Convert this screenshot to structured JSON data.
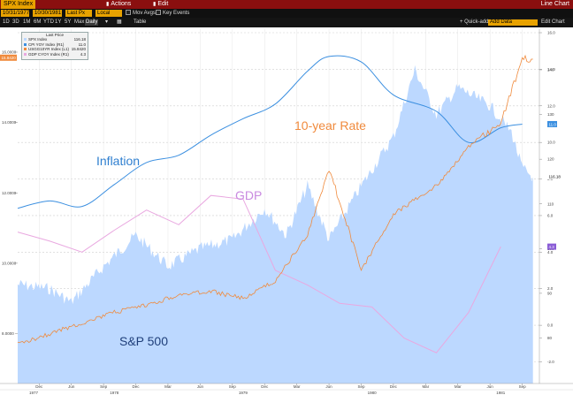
{
  "titlebar": {
    "ticker": "SPX Index",
    "blurred": "",
    "actions": "Actions",
    "edit": "Edit",
    "right": "Line Chart"
  },
  "toolbar1": {
    "date_start": "10/31/1977",
    "date_end": "10/30/1981",
    "freq": "Last Px",
    "currency": "Local CCY",
    "mov_avgs": "Mov Avgs",
    "key_events": "Key Events"
  },
  "toolbar2": {
    "periods": [
      "1D",
      "3D",
      "1M",
      "6M",
      "YTD",
      "1Y",
      "5Y",
      "Max",
      "Daily"
    ],
    "selected": "Daily",
    "table": "Table",
    "quick_add": "+ Quick-add",
    "add_data": "Add Data",
    "edit_chart": "Edit Chart"
  },
  "legend": {
    "header": "Last Price",
    "rows": [
      {
        "label": "SPX Index",
        "value": "116.18",
        "color": "#bcd8ff"
      },
      {
        "label": "CPI YOY Index",
        "axis": "(R1)",
        "value": "11.0",
        "color": "#3b8fe0"
      },
      {
        "label": "USGG10YR Index",
        "axis": "(L1)",
        "value": "15.8420",
        "color": "#f08a3c"
      },
      {
        "label": "GDP CYOY Index",
        "axis": "(R1)",
        "value": "4.3",
        "color": "#e9a8e0"
      }
    ]
  },
  "annotations": {
    "inflation": "Inflation",
    "ten_year": "10-year Rate",
    "gdp": "GDP",
    "sp500": "S&P 500"
  },
  "colors": {
    "inflation": "#3b8fe0",
    "ten_year": "#f08a3c",
    "gdp": "#e9a8e0",
    "sp500_fill": "#bcd8ff",
    "sp500_label": "#1f3f7a",
    "ten_year_label": "#f08a3c",
    "inflation_label": "#2f7fd0",
    "gdp_label": "#c98ae0"
  },
  "chart_data": {
    "type": "area",
    "left_axis_ticks": [
      "16.0000",
      "14.0000",
      "12.0000",
      "10.0000",
      "8.0000"
    ],
    "left_axis_badges": [
      "15.8420"
    ],
    "right_axis_ticks": [
      "16.0",
      "14.0",
      "12.0",
      "10.0",
      "8.0",
      "6.0",
      "4.0",
      "2.0",
      "0.0",
      "-2.0"
    ],
    "right_axis_ticks_spx": [
      "140",
      "130",
      "120",
      "110",
      "100",
      "90",
      "80"
    ],
    "right_axis_badges": [
      "11.0",
      "116.18",
      "4.3"
    ],
    "x_month_labels": [
      "Dec",
      "Mar",
      "Jun",
      "Sep",
      "Dec",
      "Mar",
      "Jun",
      "Sep",
      "Dec",
      "Mar",
      "Jun",
      "Sep",
      "Dec",
      "Mar",
      "Jun",
      "Sep"
    ],
    "x_year_labels": [
      "1977",
      "1978",
      "1979",
      "1980",
      "1981"
    ],
    "series": [
      {
        "name": "CPI YOY Index",
        "axis": "R1",
        "x": [
          "1977-10",
          "1978-01",
          "1978-04",
          "1978-07",
          "1978-10",
          "1979-01",
          "1979-04",
          "1979-07",
          "1979-10",
          "1980-01",
          "1980-03",
          "1980-06",
          "1980-09",
          "1981-01",
          "1981-04",
          "1981-07",
          "1981-09"
        ],
        "values": [
          6.4,
          6.8,
          6.5,
          7.7,
          8.9,
          9.3,
          10.4,
          11.3,
          12.1,
          13.9,
          14.7,
          14.4,
          12.6,
          11.7,
          10.0,
          10.8,
          11.0
        ]
      },
      {
        "name": "GDP CYOY Index",
        "axis": "R1",
        "x": [
          "1977-10",
          "1978-01",
          "1978-04",
          "1978-07",
          "1978-10",
          "1979-01",
          "1979-04",
          "1979-07",
          "1979-10",
          "1980-01",
          "1980-04",
          "1980-07",
          "1980-10",
          "1981-01",
          "1981-04",
          "1981-07"
        ],
        "values": [
          5.1,
          4.6,
          4.0,
          5.2,
          6.3,
          5.5,
          7.1,
          6.9,
          3.0,
          2.2,
          1.2,
          1.0,
          -0.7,
          -1.5,
          0.7,
          4.3
        ]
      },
      {
        "name": "USGG10YR Index",
        "axis": "L1",
        "x": [
          "1977-10",
          "1978-01",
          "1978-04",
          "1978-07",
          "1978-10",
          "1979-01",
          "1979-04",
          "1979-07",
          "1979-10",
          "1980-01",
          "1980-03",
          "1980-06",
          "1980-09",
          "1981-01",
          "1981-04",
          "1981-07",
          "1981-09",
          "1981-10"
        ],
        "values": [
          7.7,
          8.0,
          8.3,
          8.6,
          8.8,
          9.1,
          9.2,
          9.0,
          9.5,
          10.8,
          12.7,
          9.8,
          11.4,
          12.2,
          13.3,
          14.0,
          15.8,
          15.8
        ]
      },
      {
        "name": "SPX Index",
        "axis": "R2",
        "x": [
          "1977-10",
          "1978-01",
          "1978-03",
          "1978-06",
          "1978-09",
          "1978-12",
          "1979-03",
          "1979-06",
          "1979-09",
          "1979-11",
          "1980-01",
          "1980-03",
          "1980-06",
          "1980-09",
          "1980-11",
          "1981-01",
          "1981-03",
          "1981-06",
          "1981-08",
          "1981-09",
          "1981-10"
        ],
        "values": [
          92,
          91,
          88,
          96,
          103,
          96,
          100,
          102,
          109,
          103,
          114,
          102,
          114,
          125,
          140,
          130,
          136,
          132,
          126,
          118,
          116
        ]
      }
    ]
  }
}
